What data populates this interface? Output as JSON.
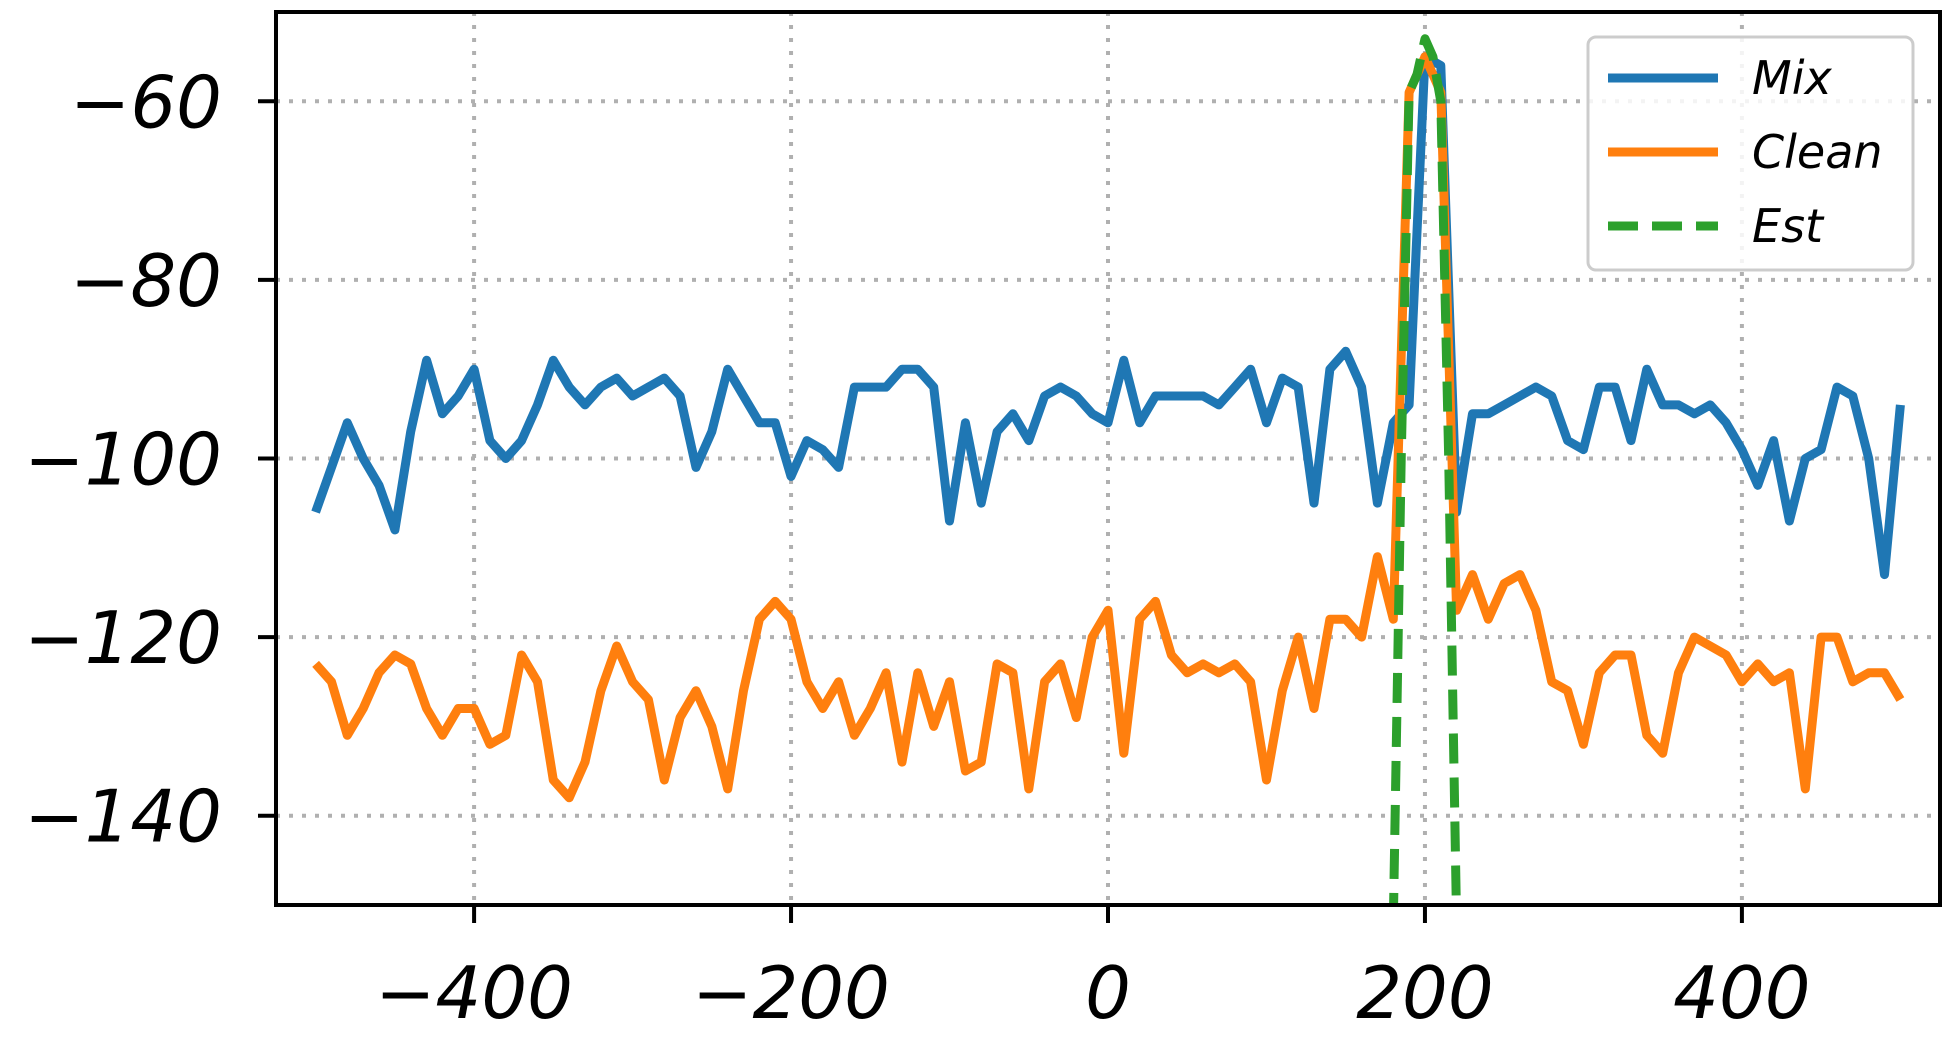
{
  "chart_data": {
    "type": "line",
    "title": "",
    "xlabel": "",
    "ylabel": "",
    "xlim": [
      -525,
      525
    ],
    "ylim": [
      -150,
      -50
    ],
    "xticks": [
      -400,
      -200,
      0,
      200,
      400
    ],
    "yticks": [
      -60,
      -80,
      -100,
      -120,
      -140
    ],
    "xtick_labels": [
      "−400",
      "−200",
      "0",
      "200",
      "400"
    ],
    "ytick_labels": [
      "−60",
      "−80",
      "−100",
      "−120",
      "−140"
    ],
    "grid": true,
    "legend_position": "top-right",
    "series": [
      {
        "name": "Mix",
        "color": "#1f77b4",
        "style": "solid",
        "x": [
          -500,
          -490,
          -480,
          -470,
          -460,
          -450,
          -440,
          -430,
          -420,
          -410,
          -400,
          -390,
          -380,
          -370,
          -360,
          -350,
          -340,
          -330,
          -320,
          -310,
          -300,
          -290,
          -280,
          -270,
          -260,
          -250,
          -240,
          -230,
          -220,
          -210,
          -200,
          -190,
          -180,
          -170,
          -160,
          -150,
          -140,
          -130,
          -120,
          -110,
          -100,
          -90,
          -80,
          -70,
          -60,
          -50,
          -40,
          -30,
          -20,
          -10,
          0,
          10,
          20,
          30,
          40,
          50,
          60,
          70,
          80,
          90,
          100,
          110,
          120,
          130,
          140,
          150,
          160,
          170,
          180,
          190,
          200,
          210,
          220,
          230,
          240,
          250,
          260,
          270,
          280,
          290,
          300,
          310,
          320,
          330,
          340,
          350,
          360,
          370,
          380,
          390,
          400,
          410,
          420,
          430,
          440,
          450,
          460,
          470,
          480,
          490,
          500
        ],
        "y": [
          -106,
          -101,
          -96,
          -100,
          -103,
          -108,
          -97,
          -89,
          -95,
          -93,
          -90,
          -98,
          -100,
          -98,
          -94,
          -89,
          -92,
          -94,
          -92,
          -91,
          -93,
          -92,
          -91,
          -93,
          -101,
          -97,
          -90,
          -93,
          -96,
          -96,
          -102,
          -98,
          -99,
          -101,
          -92,
          -92,
          -92,
          -90,
          -90,
          -92,
          -107,
          -96,
          -105,
          -97,
          -95,
          -98,
          -93,
          -92,
          -93,
          -95,
          -96,
          -89,
          -96,
          -93,
          -93,
          -93,
          -93,
          -94,
          -92,
          -90,
          -96,
          -91,
          -92,
          -105,
          -90,
          -88,
          -92,
          -105,
          -96,
          -94,
          -55,
          -56,
          -106,
          -95,
          -95,
          -94,
          -93,
          -92,
          -93,
          -98,
          -99,
          -92,
          -92,
          -98,
          -90,
          -94,
          -94,
          -95,
          -94,
          -96,
          -99,
          -103,
          -98,
          -107,
          -100,
          -99,
          -92,
          -93,
          -100,
          -113,
          -94
        ]
      },
      {
        "name": "Clean",
        "color": "#ff7f0e",
        "style": "solid",
        "x": [
          -500,
          -490,
          -480,
          -470,
          -460,
          -450,
          -440,
          -430,
          -420,
          -410,
          -400,
          -390,
          -380,
          -370,
          -360,
          -350,
          -340,
          -330,
          -320,
          -310,
          -300,
          -290,
          -280,
          -270,
          -260,
          -250,
          -240,
          -230,
          -220,
          -210,
          -200,
          -190,
          -180,
          -170,
          -160,
          -150,
          -140,
          -130,
          -120,
          -110,
          -100,
          -90,
          -80,
          -70,
          -60,
          -50,
          -40,
          -30,
          -20,
          -10,
          0,
          10,
          20,
          30,
          40,
          50,
          60,
          70,
          80,
          90,
          100,
          110,
          120,
          130,
          140,
          150,
          160,
          170,
          180,
          190,
          200,
          210,
          220,
          230,
          240,
          250,
          260,
          270,
          280,
          290,
          300,
          310,
          320,
          330,
          340,
          350,
          360,
          370,
          380,
          390,
          400,
          410,
          420,
          430,
          440,
          450,
          460,
          470,
          480,
          490,
          500
        ],
        "y": [
          -123,
          -125,
          -131,
          -128,
          -124,
          -122,
          -123,
          -128,
          -131,
          -128,
          -128,
          -132,
          -131,
          -122,
          -125,
          -136,
          -138,
          -134,
          -126,
          -121,
          -125,
          -127,
          -136,
          -129,
          -126,
          -130,
          -137,
          -126,
          -118,
          -116,
          -118,
          -125,
          -128,
          -125,
          -131,
          -128,
          -124,
          -134,
          -124,
          -130,
          -125,
          -135,
          -134,
          -123,
          -124,
          -137,
          -125,
          -123,
          -129,
          -120,
          -117,
          -133,
          -118,
          -116,
          -122,
          -124,
          -123,
          -124,
          -123,
          -125,
          -136,
          -126,
          -120,
          -128,
          -118,
          -118,
          -120,
          -111,
          -118,
          -59,
          -55,
          -59,
          -117,
          -113,
          -118,
          -114,
          -113,
          -117,
          -125,
          -126,
          -132,
          -124,
          -122,
          -122,
          -131,
          -133,
          -124,
          -120,
          -121,
          -122,
          -125,
          -123,
          -125,
          -124,
          -137,
          -120,
          -120,
          -125,
          -124,
          -124,
          -127
        ]
      },
      {
        "name": "Est",
        "color": "#2ca02c",
        "style": "dashed",
        "x": [
          180,
          185,
          190,
          195,
          200,
          205,
          210,
          215,
          220
        ],
        "y": [
          -152,
          -100,
          -59,
          -57,
          -53,
          -55,
          -60,
          -100,
          -152
        ]
      }
    ]
  }
}
